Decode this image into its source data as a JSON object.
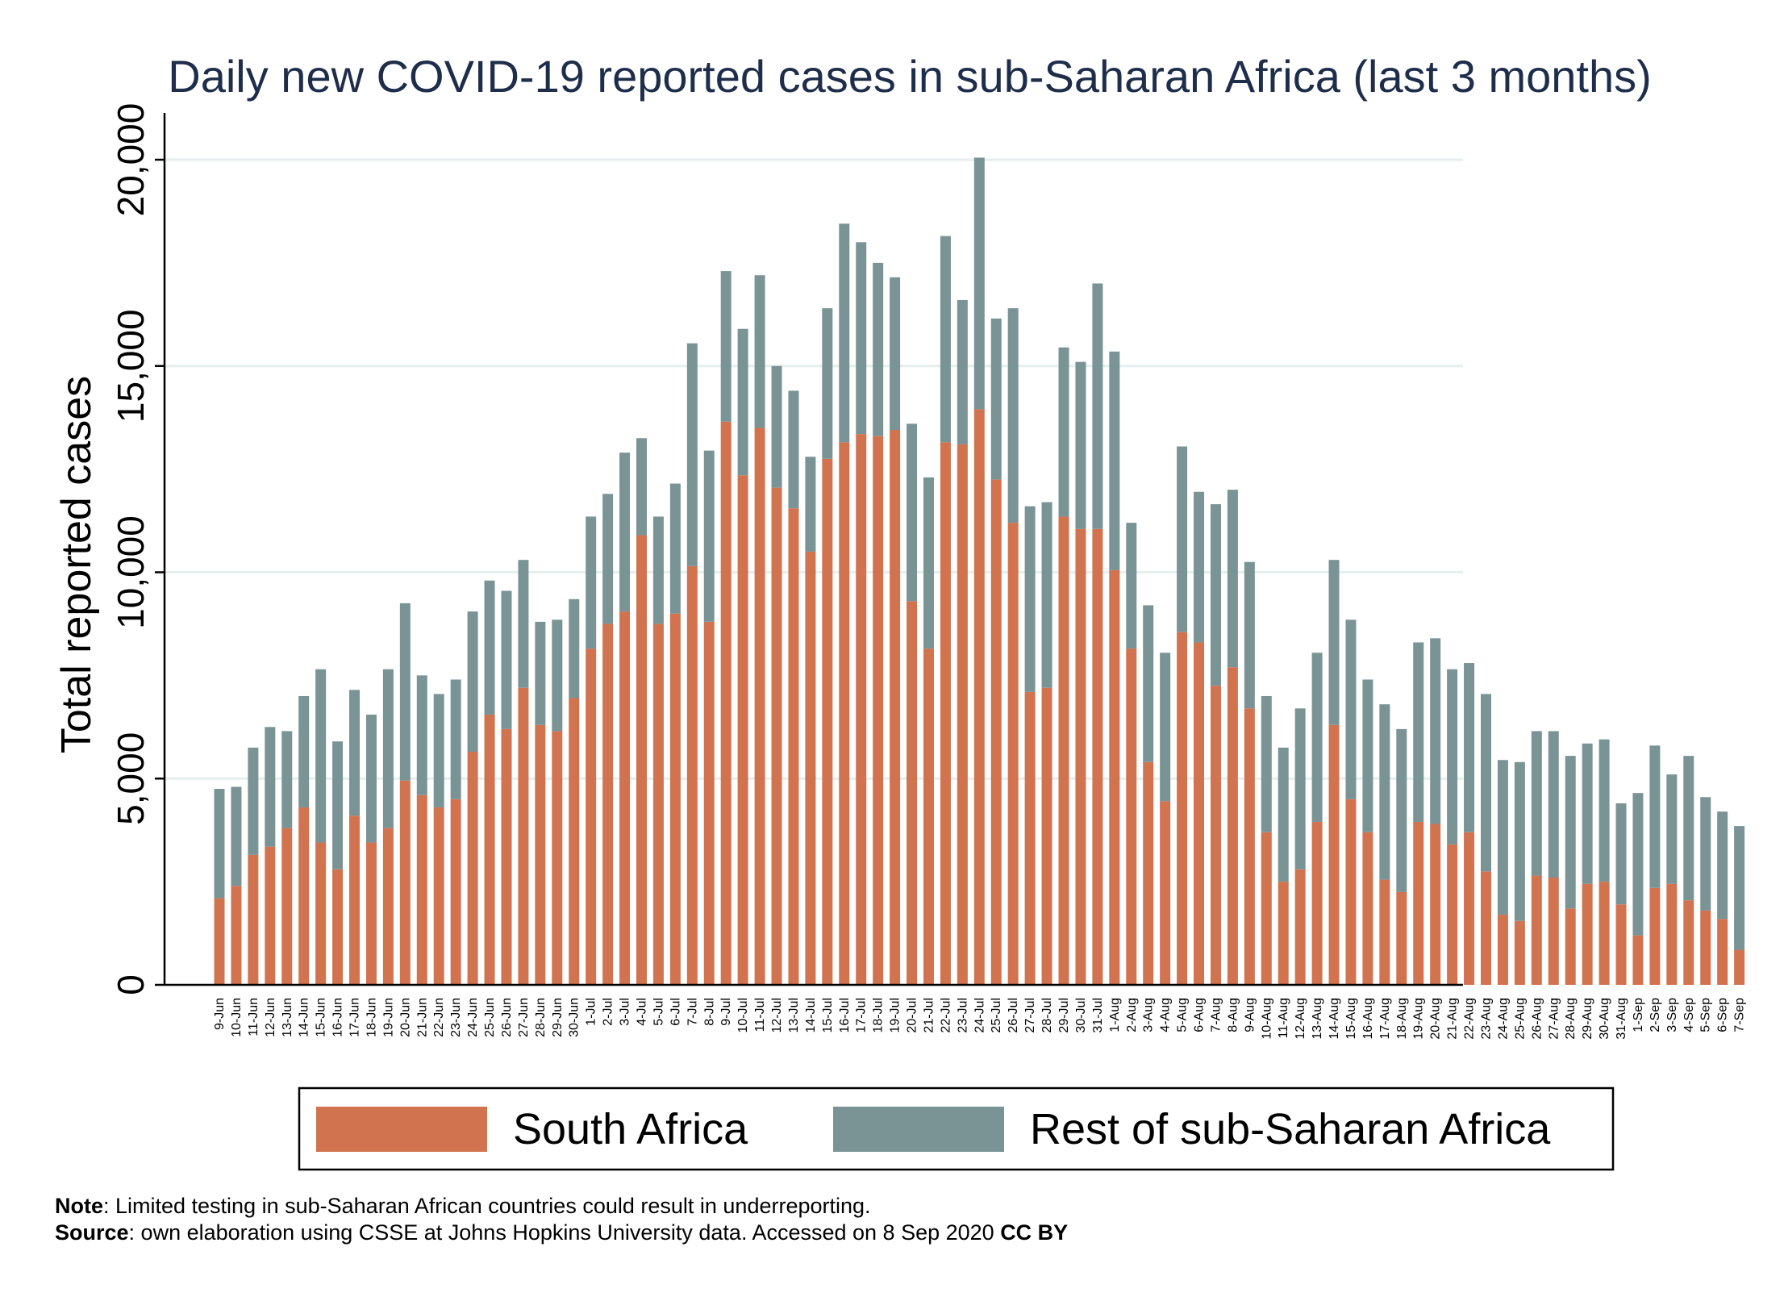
{
  "colors": {
    "south_africa": "#d27350",
    "rest": "#7a9496",
    "grid": "#e6eeee",
    "title": "#1e2d4a"
  },
  "note": {
    "label": "Note",
    "text": ": Limited testing in sub-Saharan African countries could result in underreporting."
  },
  "source": {
    "label": "Source",
    "text": ": own elaboration using CSSE at Johns Hopkins University data.  Accessed on  8 Sep 2020 ",
    "license": "CC BY"
  },
  "chart_data": {
    "type": "bar",
    "stacked": true,
    "title": "Daily new COVID-19 reported cases in sub-Saharan Africa (last 3 months)",
    "xlabel": "",
    "ylabel": "Total reported cases",
    "ylim": [
      0,
      21000
    ],
    "yticks": [
      0,
      5000,
      10000,
      15000,
      20000
    ],
    "ytick_labels": [
      "0",
      "5,000",
      "10,000",
      "15,000",
      "20,000"
    ],
    "grid": true,
    "legend_position": "bottom",
    "categories": [
      "9-Jun",
      "10-Jun",
      "11-Jun",
      "12-Jun",
      "13-Jun",
      "14-Jun",
      "15-Jun",
      "16-Jun",
      "17-Jun",
      "18-Jun",
      "19-Jun",
      "20-Jun",
      "21-Jun",
      "22-Jun",
      "23-Jun",
      "24-Jun",
      "25-Jun",
      "26-Jun",
      "27-Jun",
      "28-Jun",
      "29-Jun",
      "30-Jun",
      "1-Jul",
      "2-Jul",
      "3-Jul",
      "4-Jul",
      "5-Jul",
      "6-Jul",
      "7-Jul",
      "8-Jul",
      "9-Jul",
      "10-Jul",
      "11-Jul",
      "12-Jul",
      "13-Jul",
      "14-Jul",
      "15-Jul",
      "16-Jul",
      "17-Jul",
      "18-Jul",
      "19-Jul",
      "20-Jul",
      "21-Jul",
      "22-Jul",
      "23-Jul",
      "24-Jul",
      "25-Jul",
      "26-Jul",
      "27-Jul",
      "28-Jul",
      "29-Jul",
      "30-Jul",
      "31-Jul",
      "1-Aug",
      "2-Aug",
      "3-Aug",
      "4-Aug",
      "5-Aug",
      "6-Aug",
      "7-Aug",
      "8-Aug",
      "9-Aug",
      "10-Aug",
      "11-Aug",
      "12-Aug",
      "13-Aug",
      "14-Aug",
      "15-Aug",
      "16-Aug",
      "17-Aug",
      "18-Aug",
      "19-Aug",
      "20-Aug",
      "21-Aug",
      "22-Aug",
      "23-Aug",
      "24-Aug",
      "25-Aug",
      "26-Aug",
      "27-Aug",
      "28-Aug",
      "29-Aug",
      "30-Aug",
      "31-Aug",
      "1-Sep",
      "2-Sep",
      "3-Sep",
      "4-Sep",
      "5-Sep",
      "6-Sep",
      "7-Sep"
    ],
    "series": [
      {
        "name": "South Africa",
        "values": [
          2100,
          2400,
          3150,
          3350,
          3800,
          4300,
          3450,
          2800,
          4100,
          3450,
          3800,
          4950,
          4600,
          4300,
          4500,
          5650,
          6550,
          6200,
          7200,
          6300,
          6150,
          6950,
          8150,
          8750,
          9050,
          10900,
          8750,
          9000,
          10150,
          8800,
          13650,
          12350,
          13500,
          12050,
          11550,
          10500,
          12750,
          13150,
          13350,
          13300,
          13450,
          9300,
          8150,
          13150,
          13100,
          13950,
          12250,
          11200,
          7100,
          7200,
          11350,
          11050,
          11050,
          10050,
          8150,
          5400,
          4450,
          8550,
          8300,
          7250,
          7700,
          6700,
          3700,
          2500,
          2800,
          3950,
          6300,
          4500,
          3700,
          2550,
          2250,
          3950,
          3900,
          3400,
          3700,
          2750,
          1700,
          1550,
          2650,
          2600,
          1850,
          2450,
          2500,
          1950,
          1200,
          2350,
          2450,
          2050,
          1800,
          1600,
          850
        ]
      },
      {
        "name": "Rest of sub-Saharan Africa",
        "values": [
          2650,
          2400,
          2600,
          2900,
          2350,
          2700,
          4200,
          3100,
          3050,
          3100,
          3850,
          4300,
          2900,
          2750,
          2900,
          3400,
          3250,
          3350,
          3100,
          2500,
          2700,
          2400,
          3200,
          3150,
          3850,
          2350,
          2600,
          3150,
          5400,
          4150,
          3650,
          3550,
          3700,
          2950,
          2850,
          2300,
          3650,
          5300,
          4650,
          4200,
          3700,
          4300,
          4150,
          5000,
          3500,
          6100,
          3900,
          5200,
          4500,
          4500,
          4100,
          4050,
          5950,
          5300,
          3050,
          3800,
          3600,
          4500,
          3650,
          4400,
          4300,
          3550,
          3300,
          3250,
          3900,
          4100,
          4000,
          4350,
          3700,
          4250,
          3950,
          4350,
          4500,
          4250,
          4100,
          4300,
          3750,
          3850,
          3500,
          3550,
          3700,
          3400,
          3450,
          2450,
          3450,
          3450,
          2650,
          3500,
          2750,
          2600,
          3000
        ]
      }
    ]
  }
}
